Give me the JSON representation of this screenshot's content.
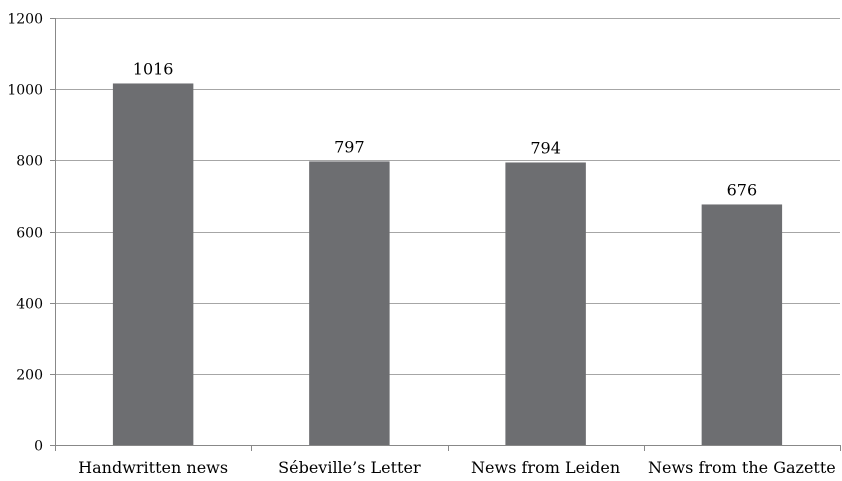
{
  "chart_data": {
    "type": "bar",
    "title": "",
    "xlabel": "",
    "ylabel": "",
    "categories": [
      "Handwritten news",
      "Sébeville’s Letter",
      "News from Leiden",
      "News from the Gazette"
    ],
    "values": [
      1016,
      797,
      794,
      676
    ],
    "data_labels": [
      "1016",
      "797",
      "794",
      "676"
    ],
    "ylim": [
      0,
      1200
    ],
    "yticks": [
      0,
      200,
      400,
      600,
      800,
      1000,
      1200
    ],
    "ytick_labels": [
      "0",
      "200",
      "400",
      "600",
      "800",
      "1000",
      "1200"
    ],
    "grid": true,
    "legend": "none",
    "bar_color": "#6d6e71",
    "grid_color": "#a6a6a6",
    "axis_color": "#888888"
  }
}
